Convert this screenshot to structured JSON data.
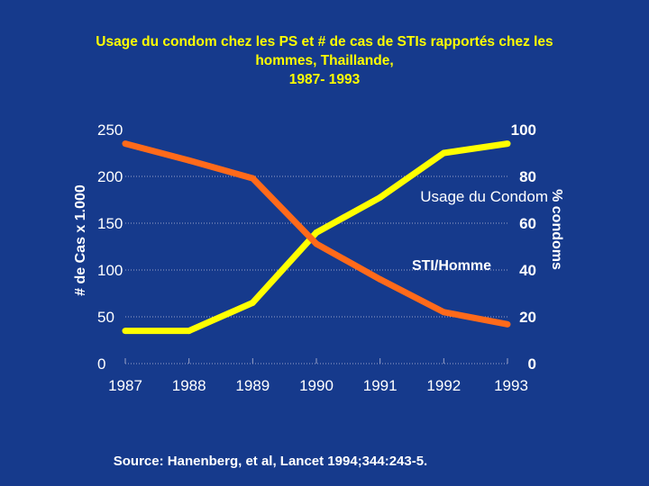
{
  "title_lines": [
    "Usage du condom chez les PS et # de cas de STIs rapportés chez les",
    "hommes, Thaillande,",
    "1987- 1993"
  ],
  "source": "Source: Hanenberg, et al, Lancet 1994;344:243-5.",
  "colors": {
    "background": "#163a8c",
    "condom_line": "#ffff00",
    "sti_line": "#ff6a1a",
    "grid": "#9aa3c8",
    "axis_text": "#ffffff"
  },
  "chart_data": {
    "type": "line",
    "x": [
      "1987",
      "1988",
      "1989",
      "1990",
      "1991",
      "1992",
      "1993"
    ],
    "ylabel_left": "# de Cas x 1.000",
    "ylabel_right": "% condoms",
    "ylim_left": [
      0,
      250
    ],
    "ylim_right": [
      0,
      100
    ],
    "yticks_left": [
      "0",
      "50",
      "100",
      "150",
      "200",
      "250"
    ],
    "yticks_right": [
      "0",
      "20",
      "40",
      "60",
      "80",
      "100"
    ],
    "grid": true,
    "series": [
      {
        "name": "Usage du Condom",
        "axis": "right",
        "values": [
          14,
          14,
          26,
          56,
          71,
          90,
          94
        ]
      },
      {
        "name": "STI/Homme",
        "axis": "left",
        "values": [
          235,
          217,
          198,
          128,
          90,
          55,
          42
        ]
      }
    ]
  }
}
